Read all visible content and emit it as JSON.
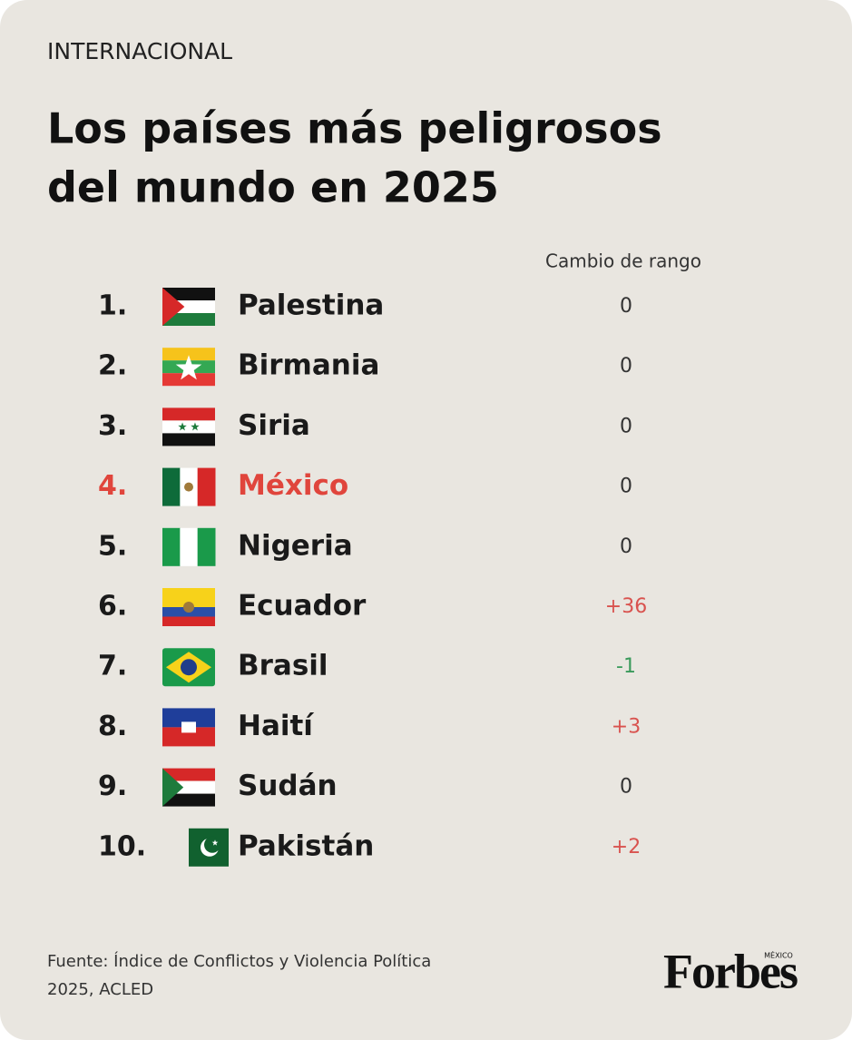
{
  "header": {
    "section": "INTERNACIONAL",
    "title_lines": [
      "Los países más peligrosos",
      "del mundo en 2025"
    ]
  },
  "table": {
    "change_header": "Cambio de rango",
    "rows": [
      {
        "rank": "1.",
        "country": "Palestina",
        "change": "0",
        "color": "#1a1a1a",
        "change_color": "#333333"
      },
      {
        "rank": "2.",
        "country": "Birmania",
        "change": "0",
        "color": "#1a1a1a",
        "change_color": "#333333"
      },
      {
        "rank": "3.",
        "country": "Siria",
        "change": "0",
        "color": "#1a1a1a",
        "change_color": "#333333"
      },
      {
        "rank": "4.",
        "country": "México",
        "change": "0",
        "color": "#e0453c",
        "change_color": "#333333"
      },
      {
        "rank": "5.",
        "country": "Nigeria",
        "change": "0",
        "color": "#1a1a1a",
        "change_color": "#333333"
      },
      {
        "rank": "6.",
        "country": "Ecuador",
        "change": "+36",
        "color": "#1a1a1a",
        "change_color": "#d9534f"
      },
      {
        "rank": "7.",
        "country": "Brasil",
        "change": "-1",
        "color": "#1a1a1a",
        "change_color": "#3a9a5b"
      },
      {
        "rank": "8.",
        "country": "Haití",
        "change": "+3",
        "color": "#1a1a1a",
        "change_color": "#d9534f"
      },
      {
        "rank": "9.",
        "country": "Sudán",
        "change": "0",
        "color": "#1a1a1a",
        "change_color": "#333333"
      },
      {
        "rank": "10.",
        "country": "Pakistán",
        "change": "+2",
        "color": "#1a1a1a",
        "change_color": "#d9534f"
      }
    ]
  },
  "footer": {
    "source_lines": [
      "Fuente: Índice de Conflictos y Violencia Política",
      "2025, ACLED"
    ],
    "logo": "Forbes",
    "logo_edition": "MÉXICO"
  }
}
